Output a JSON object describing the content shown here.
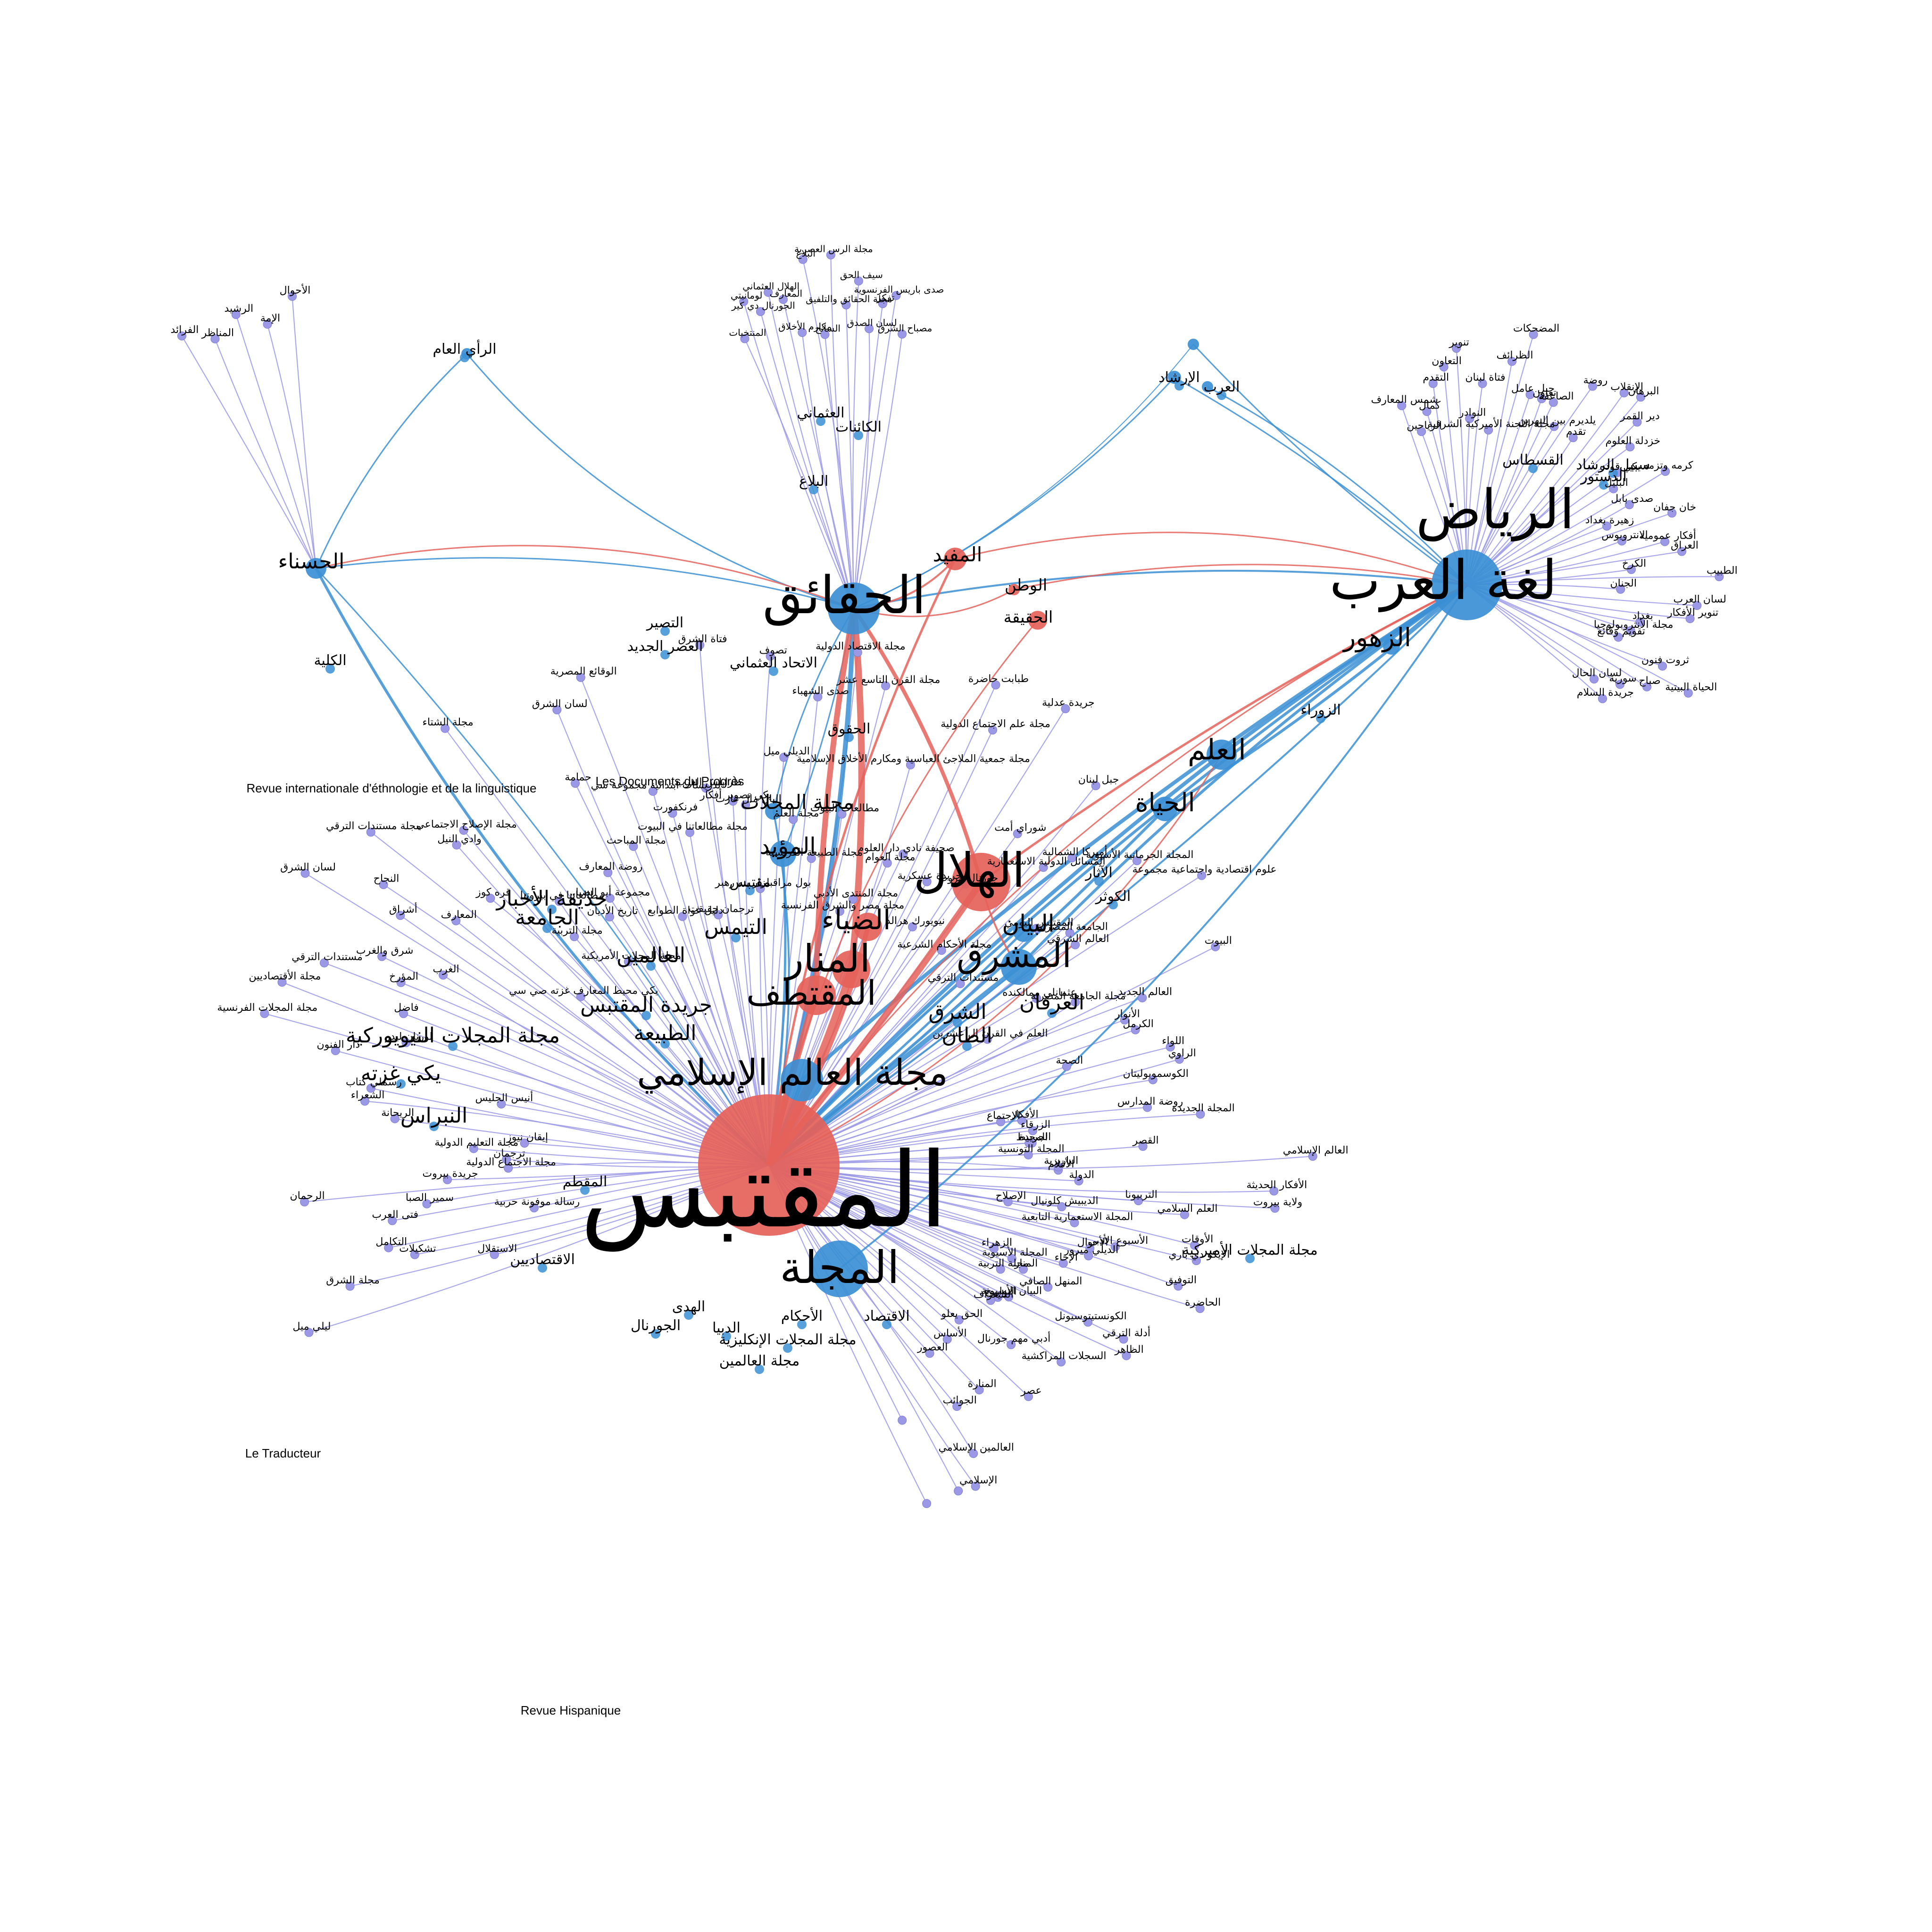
{
  "colors": {
    "periphery_node": "#9b99e6",
    "periphery_edge": "#9b99e6",
    "hub_blue": "#3b8fd4",
    "hub_red": "#e5625a",
    "edge_blue": "#3b8fd4",
    "edge_red": "#e5625a"
  },
  "hubs": {
    "muqtabas": "المقتبس",
    "majalla": "المجلة",
    "haqaiq": "الحقائق",
    "riyad": "الرياض",
    "lughat_arab": "لغة العرب",
    "zuhur": "الزهور",
    "hasna": "الحسناء",
    "hilal": "الهلال",
    "manar": "المنار",
    "muqtataf": "المقتطف",
    "diya": "الضياء",
    "mashriq": "المشرق",
    "bayan": "البيان",
    "alam_islami": "مجلة العالم الإسلامي",
    "ilm": "العلم",
    "hayat": "الحياة",
    "muayyad": "المؤيد",
    "majallat": "مجلة المجلات",
    "mufid": "المفيد",
    "watan": "الوطن",
    "haqiqa": "الحقيقة"
  },
  "mid_labels": [
    "الجامعة",
    "حديقة الأخبار",
    "التيمس",
    "العالمين",
    "جريدة المقتبس",
    "الطبيعة",
    "الشرق",
    "الطان",
    "العرفان",
    "مجلة المجلات النيويوركية",
    "يكي غزته",
    "النبراس",
    "الاقتصاديين",
    "الهدى",
    "الجورنال",
    "الدبيا",
    "مجلة المجلات الأميركية",
    "مجلة المجلات الإنكليزية",
    "الأحكام",
    "الاقتصاد",
    "مجلة العالمين",
    "الدستور",
    "القسطاس",
    "سبيل الرشاد",
    "الزوراء",
    "الآثار",
    "الكوثر",
    "المقطم",
    "مقتبس",
    "الحقوق",
    "الكائنات",
    "البلاغ",
    "العثماني",
    "الإرشاد",
    "العرب",
    "الرأي العام",
    "الكلية",
    "التصير",
    "العصر الجديد",
    "الاتحاد العثماني"
  ],
  "small_labels": [
    "الفرائد",
    "المناظر",
    "الرشيد",
    "الإمة",
    "الأحوال",
    "المنتخبات",
    "لومانيتي",
    "الجورنال دي كير",
    "الهلال العثماني",
    "المعارف",
    "مكارم الأخلاق",
    "البلاغ",
    "السانح",
    "مجلة الرس العصرية",
    "مجلة الحقائق والتلفيق",
    "سيف الحق",
    "لسان الصدق",
    "تفكر",
    "صدى باريس الفرنسوية",
    "مصباح الشرق",
    "شمس المعارف",
    "الرياحين",
    "كمال",
    "التقدم",
    "التعاون",
    "تنوير",
    "النوادر",
    "فتاة لبنان",
    "مجلة اللجنة الأميركية الشرقية",
    "الظرائف",
    "المضحكات",
    "جبل عامل",
    "تعاون",
    "الصاعقة",
    "يلديرم بين النهرين",
    "روضة",
    "تقدم",
    "الإنقلاب",
    "البرهان",
    "دير القمر",
    "خزدلة العلوم",
    "يكي قوده",
    "البليل",
    "كرمه وتزمه",
    "صدى بابل",
    "زهيرة بغداد",
    "خان جفان",
    "الانترويوس",
    "أفكار عمومية",
    "العراق",
    "الكرخ",
    "الطبيب",
    "الجنان",
    "لسان العرب",
    "تنوير الأفكار",
    "بغداد",
    "مجلة الأنتروبولوجيا",
    "تقويم وقائع",
    "ثروت فنون",
    "الحياة البيتية",
    "صباح",
    "سورية",
    "لسان الحال",
    "جريدة السلام",
    "ليلي ميل",
    "الاستقلال",
    "مجلة الشرق",
    "تشكيلات",
    "التكامل",
    "رسالة موفونة حربية",
    "فتى العرب",
    "سمير الصبا",
    "الرحمان",
    "جريدة بيروت",
    "مجلة الاجتماع الدولية",
    "ترجمان",
    "مجلة التعليم الدولية",
    "إيقان نيوز",
    "الريحانة",
    "الشعراء",
    "رسملي كتاب",
    "أنيس الجليس",
    "دار الفنون",
    "مجلة المجلات الفرنسية",
    "لورنان ليدر",
    "مجلة الأقتصاديين",
    "فاضل",
    "مستندات الترقي",
    "المؤرخ",
    "شرق والغرب",
    "الغرب",
    "لسان الشرق",
    "أشراق",
    "النجاح",
    "المعارف",
    "مجلة مستندات الترقي",
    "يكي محيط المعارف غزته صي سي",
    "قره كوز",
    "وادي النيل",
    "مجلة الإصلاح الاجتماعي",
    "مجلة التربية",
    "مطالعاتنا في بيروتنا",
    "مجلة الشتاء",
    "مجلة المجلات الأمريكية",
    "تاريخ الأديان",
    "مجموعة أبو الضيا",
    "روضة المعارف",
    "حمامة",
    "لسان الشرق",
    "مجلة المباحث",
    "الوقائع المصرية",
    "دليل غواة الطوابع",
    "تدريسات ابتدائية مجموعة سي",
    "فرنكفورت",
    "مجلة مطالعاتنا في البيوت",
    "ترجمان حقيقت",
    "طرابلس الغرب",
    "فتاة الشرق",
    "يكي تصوير أفكار",
    "البال مال غازت",
    "بول مراقبلزار بنه رهبر",
    "تصوف",
    "الديلي ميل",
    "مجلة العلم",
    "صدى الشهباء",
    "مجلة الطبيعة الفرنسية",
    "مجلة الاقتصاد الدولية",
    "مطالعات البيوت",
    "مجلة القرن التاسع عشر",
    "مجلة مصر والشرق الفرنسية",
    "مجلة المنتدى الأدبي",
    "مجلة جمعية الملاجئ العباسية ومكارم الأخلاق الإسلامية",
    "مجلة العوام",
    "صحيفة نادي دار العلوم",
    "طبابت حاضرة",
    "مجلة علم الاجتماع الدولية",
    "جريدة عسكرية",
    "نيويورك هرالد",
    "جريدة عدلية",
    "جورنال بيروت",
    "شوراي أمت",
    "مجلة الأحكام الشرعية",
    "جبل لبنان",
    "المسائل الدولية الاستعمارية",
    "أميركا الشمالية",
    "مستندات الترقي",
    "المقتبس اليومي",
    "المجلة الجرمانية الأسيوية",
    "الجامعة المصرية",
    "العالم الشرقي",
    "علوم اقتصادية واجتماعية مجموعة",
    "عثمانلي ممالكنده",
    "العلم في القرن ال عشرين",
    "مجلة الجامعة المصرية",
    "البيوت",
    "العالم الجديد",
    "الأنوار",
    "الكرمل",
    "الصحة",
    "اللواء",
    "الراوي",
    "الكوسموبوليتان",
    "الاجتماع",
    "روضة المدارس",
    "المجلة الجديدة",
    "الجريدة",
    "القصر",
    "العالم الإسلامي",
    "الأقلام",
    "الأفكار الحديثة",
    "ولاية بيروت",
    "العلم السلامي",
    "الإصلاح",
    "الأوقات",
    "الإيكو دي باري",
    "الأحوال",
    "التوفيق",
    "الحاضرة",
    "الزهراء",
    "المنار",
    "مجلة التربية",
    "أدلة الترقي",
    "الظاهر",
    "التواريخ",
    "الأفكار",
    "الزرقاء",
    "المحيط",
    "المجلة التونسية",
    "الباريزية",
    "الدولة",
    "التربيونا",
    "الديبيش كلونيال",
    "المجلة الاستعمارية التابعية",
    "الأسبوع الأدبي",
    "الديلي ميرور",
    "الإخاء",
    "المجلة الأسيوية",
    "المنهل الصافي",
    "الكونستيتوسيونل",
    "البيان الأسيوية",
    "التليغراف",
    "السجلات المراكشية",
    "أدبي مهم جورنال",
    "الحق يعلو",
    "عصر",
    "الأساس",
    "المنارة",
    "العصور",
    "الجوائب",
    "العالمين الإسلامي",
    "الإسلامي"
  ],
  "latin_labels": [
    "Revue internationale d'éthnologie et de la linguistique",
    "Les Documents du Progrès",
    "Le Traducteur",
    "Revue Hispanique"
  ]
}
